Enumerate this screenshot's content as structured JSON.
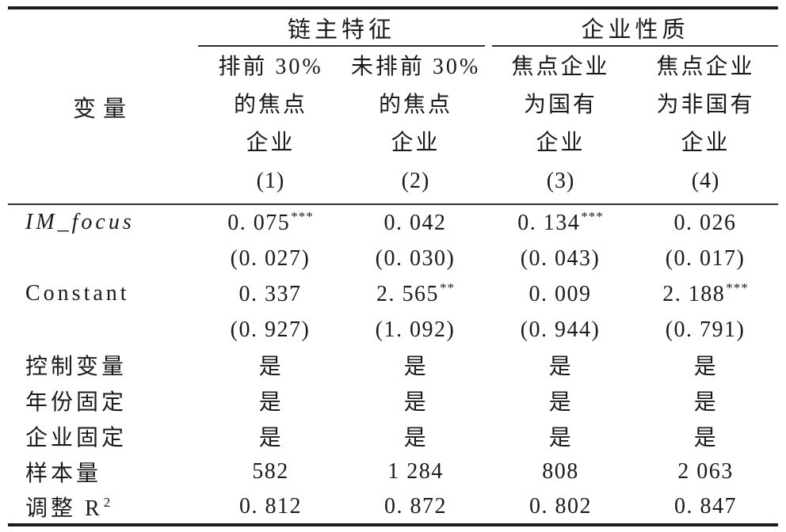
{
  "table": {
    "variable_header": "变量",
    "groups": [
      {
        "label": "链主特征"
      },
      {
        "label": "企业性质"
      }
    ],
    "columns": [
      {
        "lines": [
          "排前 30%",
          "的焦点",
          "企业"
        ],
        "number": "(1)"
      },
      {
        "lines": [
          "未排前 30%",
          "的焦点",
          "企业"
        ],
        "number": "(2)"
      },
      {
        "lines": [
          "焦点企业",
          "为国有",
          "企业"
        ],
        "number": "(3)"
      },
      {
        "lines": [
          "焦点企业",
          "为非国有",
          "企业"
        ],
        "number": "(4)"
      }
    ],
    "rows": [
      {
        "label": "IM_focus",
        "cells": [
          {
            "t": "0. 075",
            "s": "***"
          },
          {
            "t": "0. 042",
            "s": ""
          },
          {
            "t": "0. 134",
            "s": "***"
          },
          {
            "t": "0. 026",
            "s": ""
          }
        ]
      },
      {
        "label": "",
        "cells": [
          {
            "t": "(0. 027)",
            "s": ""
          },
          {
            "t": "(0. 030)",
            "s": ""
          },
          {
            "t": "(0. 043)",
            "s": ""
          },
          {
            "t": "(0. 017)",
            "s": ""
          }
        ]
      },
      {
        "label": "Constant",
        "cells": [
          {
            "t": "0. 337",
            "s": ""
          },
          {
            "t": "2. 565",
            "s": "**"
          },
          {
            "t": "0. 009",
            "s": ""
          },
          {
            "t": "2. 188",
            "s": "***"
          }
        ]
      },
      {
        "label": "",
        "cells": [
          {
            "t": "(0. 927)",
            "s": ""
          },
          {
            "t": "(1. 092)",
            "s": ""
          },
          {
            "t": "(0. 944)",
            "s": ""
          },
          {
            "t": "(0. 791)",
            "s": ""
          }
        ]
      },
      {
        "label": "控制变量",
        "cells": [
          {
            "t": "是",
            "s": ""
          },
          {
            "t": "是",
            "s": ""
          },
          {
            "t": "是",
            "s": ""
          },
          {
            "t": "是",
            "s": ""
          }
        ]
      },
      {
        "label": "年份固定",
        "cells": [
          {
            "t": "是",
            "s": ""
          },
          {
            "t": "是",
            "s": ""
          },
          {
            "t": "是",
            "s": ""
          },
          {
            "t": "是",
            "s": ""
          }
        ]
      },
      {
        "label": "企业固定",
        "cells": [
          {
            "t": "是",
            "s": ""
          },
          {
            "t": "是",
            "s": ""
          },
          {
            "t": "是",
            "s": ""
          },
          {
            "t": "是",
            "s": ""
          }
        ]
      },
      {
        "label": "样本量",
        "cells": [
          {
            "t": "582",
            "s": ""
          },
          {
            "t": "1 284",
            "s": ""
          },
          {
            "t": "808",
            "s": ""
          },
          {
            "t": "2 063",
            "s": ""
          }
        ]
      },
      {
        "label": "调整 R",
        "label_sup": "2",
        "cells": [
          {
            "t": "0. 812",
            "s": ""
          },
          {
            "t": "0. 872",
            "s": ""
          },
          {
            "t": "0. 802",
            "s": ""
          },
          {
            "t": "0. 847",
            "s": ""
          }
        ]
      }
    ]
  }
}
